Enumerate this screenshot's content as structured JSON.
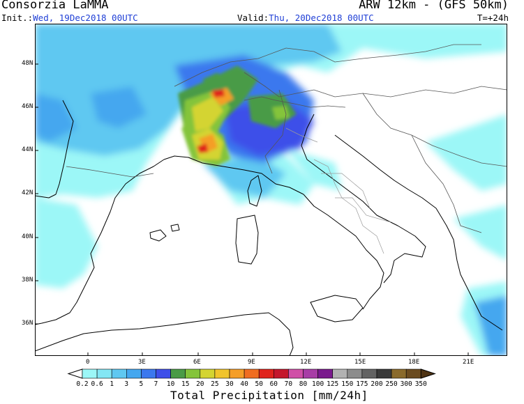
{
  "header": {
    "organization": "Consorzia LaMMA",
    "model": "ARW 12km - (GFS 50km)",
    "init_label": "Init.:",
    "init_value": "Wed, 19Dec2018 00UTC",
    "valid_label": "Valid:",
    "valid_value": "Thu, 20Dec2018 00UTC",
    "forecast_step": "T=+24h"
  },
  "map": {
    "lat_labels": [
      "48N",
      "46N",
      "44N",
      "42N",
      "40N",
      "38N",
      "36N"
    ],
    "lon_labels": [
      "0",
      "3E",
      "6E",
      "9E",
      "12E",
      "15E",
      "18E",
      "21E"
    ]
  },
  "colorbar": {
    "title": "Total Precipitation [mm/24h]",
    "levels": [
      "0.2",
      "0.6",
      "1",
      "3",
      "5",
      "7",
      "10",
      "15",
      "20",
      "25",
      "30",
      "40",
      "50",
      "60",
      "70",
      "80",
      "100",
      "125",
      "150",
      "175",
      "200",
      "250",
      "300",
      "350"
    ],
    "colors": [
      "#9cf7f7",
      "#83e6f4",
      "#5fc8f1",
      "#44a7ef",
      "#3b78ee",
      "#3e4fe9",
      "#4a9b46",
      "#84c43a",
      "#d4d431",
      "#f1c42c",
      "#f59e27",
      "#f06d21",
      "#e0231c",
      "#c4162c",
      "#d04fa7",
      "#a83da6",
      "#7a1a8d",
      "#b2b2b2",
      "#8c8c8c",
      "#636363",
      "#3a3a3a",
      "#8a6a2b",
      "#6b4b1f",
      "#4f3414"
    ],
    "under_color": "#ffffff",
    "over_color": "#4f3414"
  },
  "colors": {
    "coastline": "#000000",
    "borders": "#7a7a7a",
    "header_blue": "#1f3fd6"
  }
}
